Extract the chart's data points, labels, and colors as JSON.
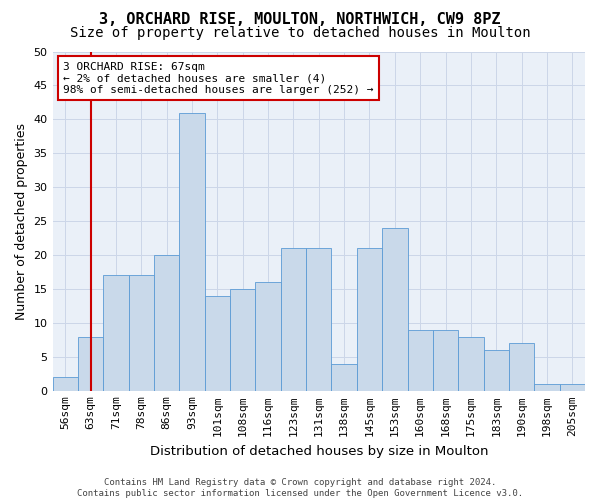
{
  "title": "3, ORCHARD RISE, MOULTON, NORTHWICH, CW9 8PZ",
  "subtitle": "Size of property relative to detached houses in Moulton",
  "xlabel": "Distribution of detached houses by size in Moulton",
  "ylabel": "Number of detached properties",
  "footer": "Contains HM Land Registry data © Crown copyright and database right 2024.\nContains public sector information licensed under the Open Government Licence v3.0.",
  "annotation_line1": "3 ORCHARD RISE: 67sqm",
  "annotation_line2": "← 2% of detached houses are smaller (4)",
  "annotation_line3": "98% of semi-detached houses are larger (252) →",
  "categories": [
    "56sqm",
    "63sqm",
    "71sqm",
    "78sqm",
    "86sqm",
    "93sqm",
    "101sqm",
    "108sqm",
    "116sqm",
    "123sqm",
    "131sqm",
    "138sqm",
    "145sqm",
    "153sqm",
    "160sqm",
    "168sqm",
    "175sqm",
    "183sqm",
    "190sqm",
    "198sqm",
    "205sqm"
  ],
  "values": [
    2,
    8,
    17,
    17,
    20,
    41,
    14,
    15,
    16,
    21,
    21,
    4,
    21,
    24,
    9,
    9,
    8,
    6,
    7,
    1,
    1
  ],
  "bar_color": "#c9d9ea",
  "bar_edge_color": "#5b9bd5",
  "marker_idx": 1,
  "marker_color": "#cc0000",
  "ylim": [
    0,
    50
  ],
  "yticks": [
    0,
    5,
    10,
    15,
    20,
    25,
    30,
    35,
    40,
    45,
    50
  ],
  "grid_color": "#ccd6e8",
  "bg_color": "#eaf0f8",
  "annotation_box_edge": "#cc0000",
  "title_fontsize": 11,
  "subtitle_fontsize": 10,
  "axis_label_fontsize": 9,
  "tick_fontsize": 8,
  "footer_fontsize": 6.5
}
